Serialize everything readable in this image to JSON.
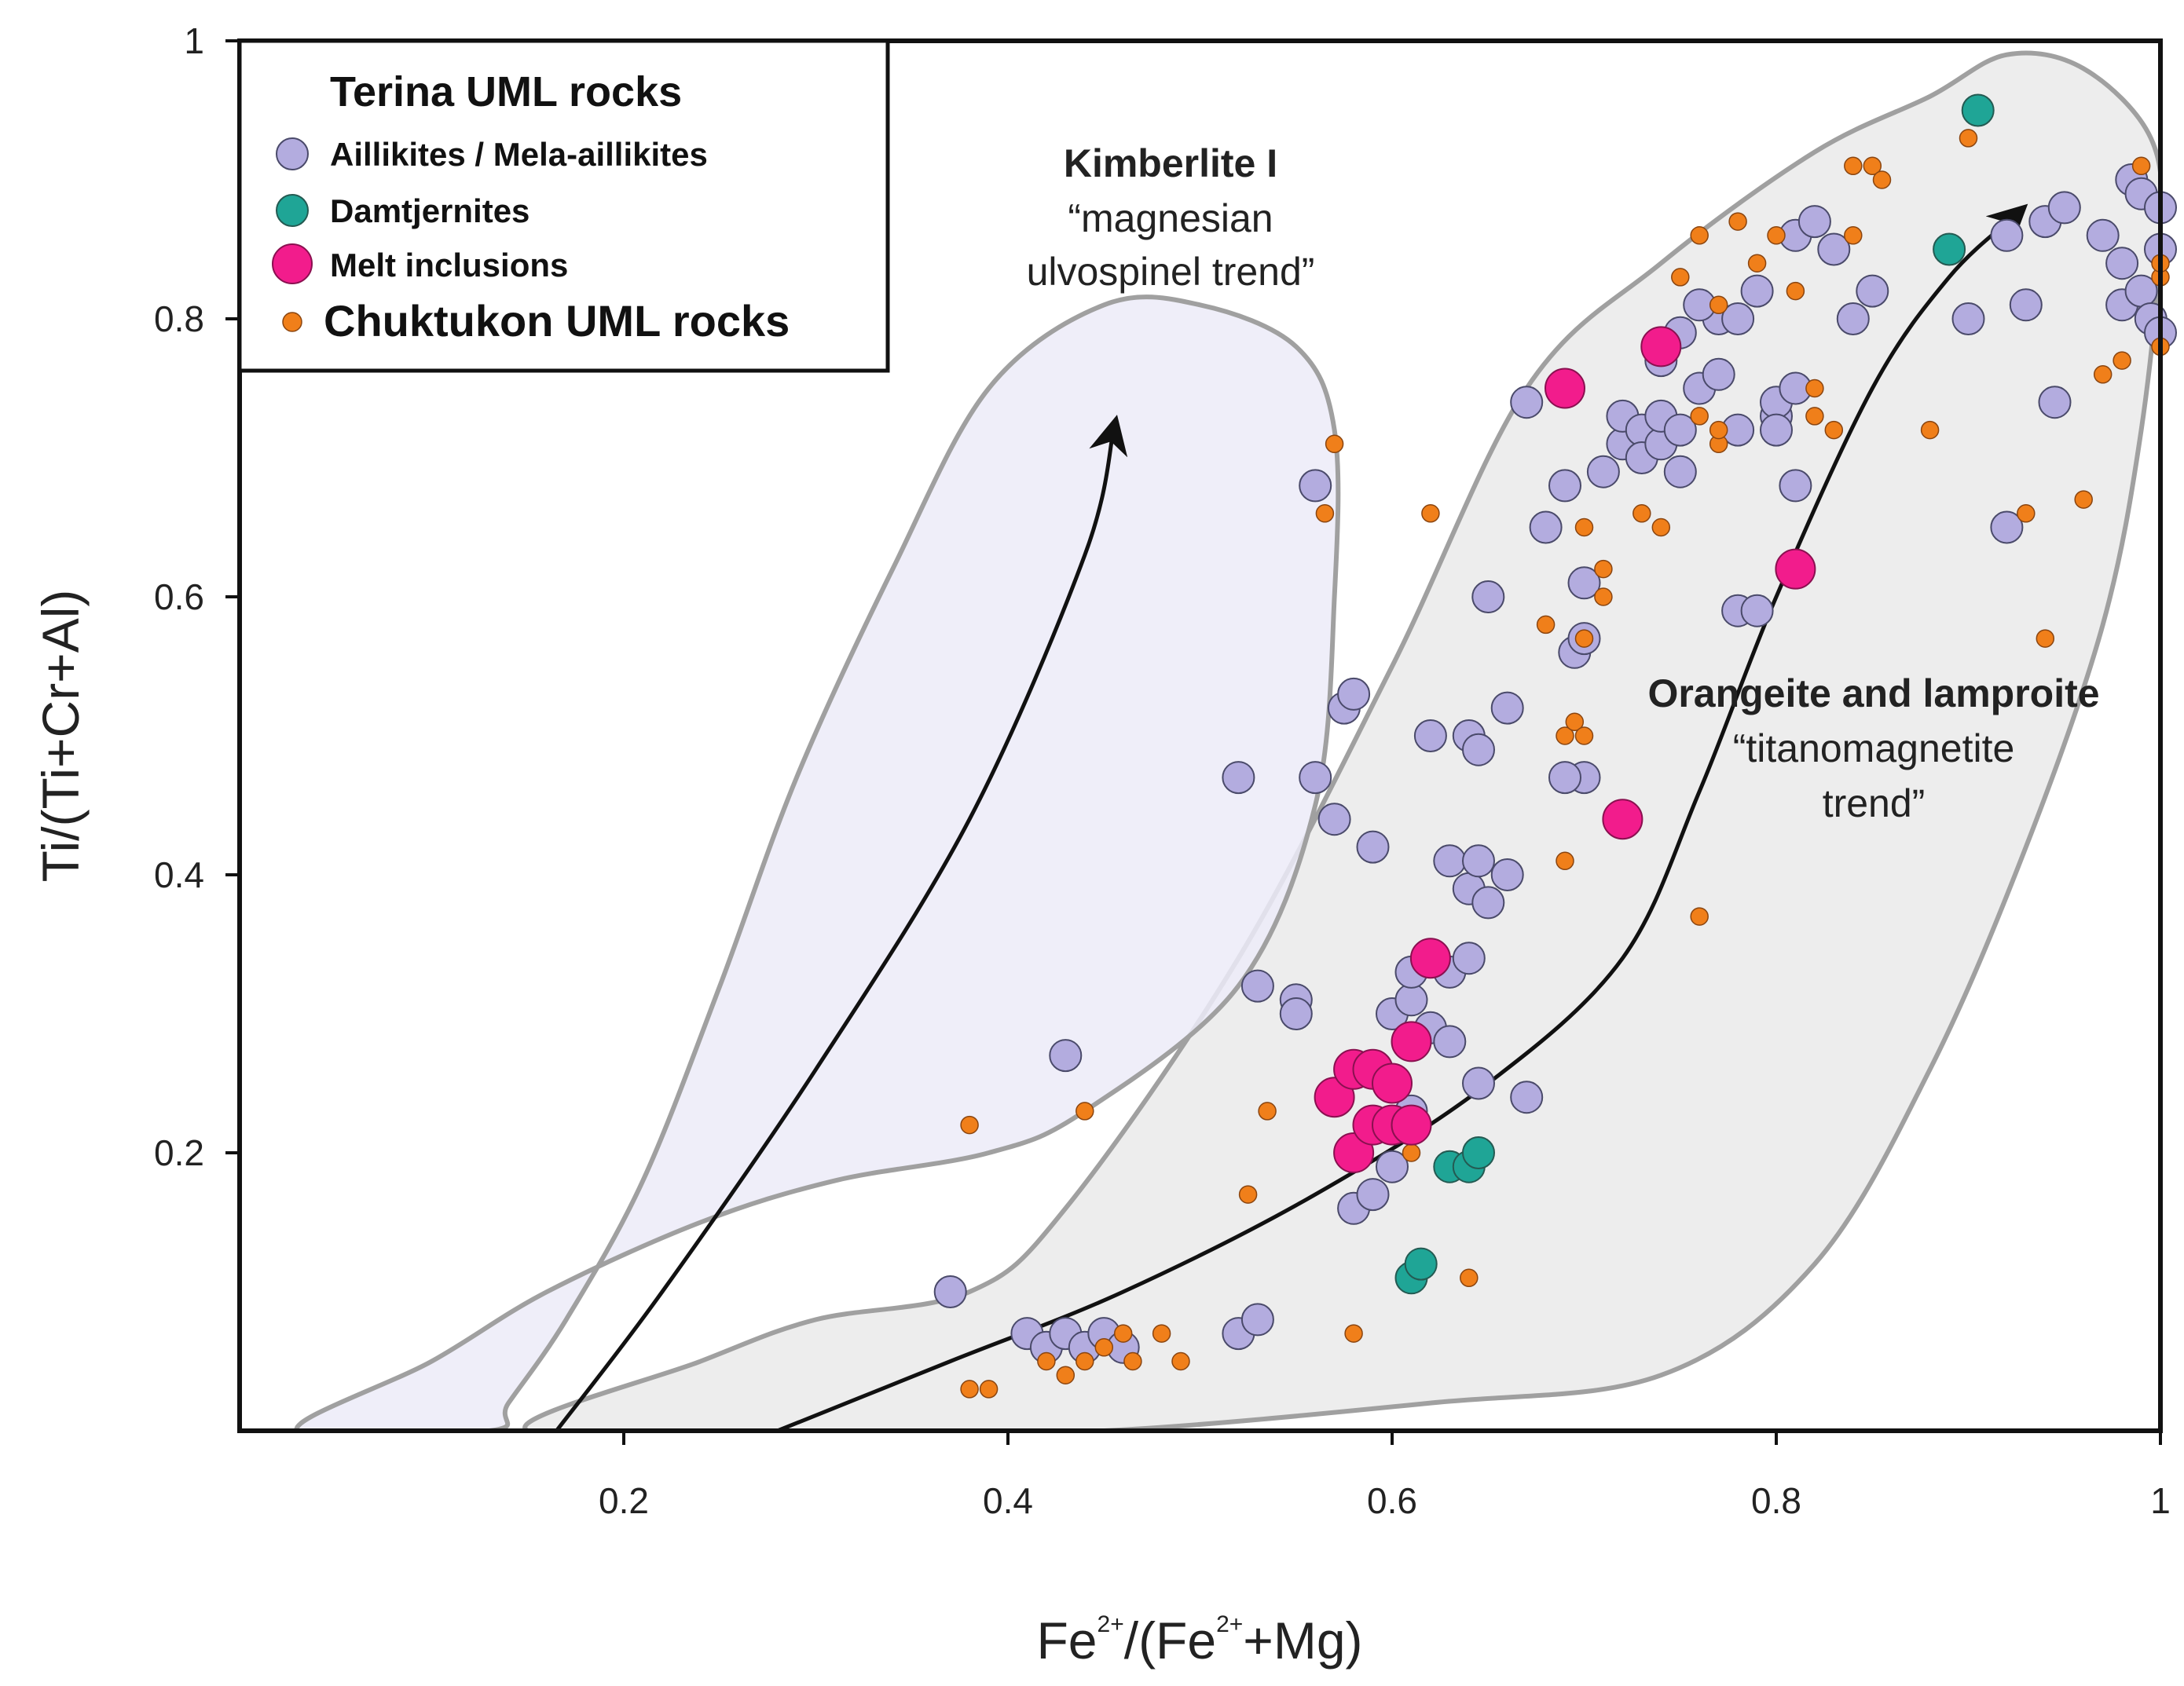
{
  "chart_data": {
    "type": "scatter",
    "title": "",
    "xlabel_parts": [
      "Fe",
      "2+",
      "/(Fe",
      "2+",
      "+Mg)"
    ],
    "ylabel": "Ti/(Ti+Cr+Al)",
    "xlim": [
      0,
      1
    ],
    "ylim": [
      0,
      1
    ],
    "x_ticks": [
      {
        "value": 0.2,
        "label": "0.2"
      },
      {
        "value": 0.4,
        "label": "0.4"
      },
      {
        "value": 0.6,
        "label": "0.6"
      },
      {
        "value": 0.8,
        "label": "0.8"
      },
      {
        "value": 1.0,
        "label": "1"
      }
    ],
    "y_ticks": [
      {
        "value": 0.2,
        "label": "0.2"
      },
      {
        "value": 0.4,
        "label": "0.4"
      },
      {
        "value": 0.6,
        "label": "0.6"
      },
      {
        "value": 0.8,
        "label": "0.8"
      },
      {
        "value": 1.0,
        "label": "1"
      }
    ],
    "legend": {
      "title": "Terina UML rocks",
      "placement": "top-left",
      "entries": [
        {
          "series": "aillikites",
          "label": "Aillikites / Mela-aillikites"
        },
        {
          "series": "damtjernites",
          "label": "Damtjernites"
        },
        {
          "series": "melt_inclusions",
          "label": "Melt inclusions"
        },
        {
          "series": "chuktukon",
          "label": "Chuktukon UML rocks"
        }
      ]
    },
    "fields": [
      {
        "name": "kimberlite-field",
        "label": "Kimberlite I",
        "sublabel": [
          "“magnesian",
          "ulvospinel trend”"
        ],
        "fill": "#ecebf8",
        "outline": [
          [
            0.03,
            0
          ],
          [
            0.1,
            0.05
          ],
          [
            0.16,
            0.1
          ],
          [
            0.24,
            0.15
          ],
          [
            0.31,
            0.18
          ],
          [
            0.39,
            0.2
          ],
          [
            0.44,
            0.23
          ],
          [
            0.52,
            0.32
          ],
          [
            0.56,
            0.45
          ],
          [
            0.57,
            0.6
          ],
          [
            0.57,
            0.72
          ],
          [
            0.55,
            0.78
          ],
          [
            0.5,
            0.81
          ],
          [
            0.45,
            0.81
          ],
          [
            0.39,
            0.75
          ],
          [
            0.34,
            0.62
          ],
          [
            0.29,
            0.47
          ],
          [
            0.25,
            0.32
          ],
          [
            0.21,
            0.18
          ],
          [
            0.17,
            0.08
          ],
          [
            0.14,
            0.02
          ],
          [
            0.13,
            0
          ]
        ]
      },
      {
        "name": "orangeite-lamproite-field",
        "label": "Orangeite and lamproite",
        "sublabel": [
          "“titanomagnetite",
          "trend”"
        ],
        "fill": "#ededed",
        "outline": [
          [
            0.15,
            0
          ],
          [
            0.24,
            0.05
          ],
          [
            0.3,
            0.08
          ],
          [
            0.38,
            0.1
          ],
          [
            0.43,
            0.16
          ],
          [
            0.52,
            0.34
          ],
          [
            0.6,
            0.55
          ],
          [
            0.67,
            0.75
          ],
          [
            0.74,
            0.84
          ],
          [
            0.82,
            0.92
          ],
          [
            0.88,
            0.96
          ],
          [
            0.92,
            0.99
          ],
          [
            0.96,
            0.98
          ],
          [
            0.995,
            0.93
          ],
          [
            1.0,
            0.86
          ],
          [
            0.99,
            0.72
          ],
          [
            0.97,
            0.58
          ],
          [
            0.93,
            0.42
          ],
          [
            0.88,
            0.26
          ],
          [
            0.82,
            0.12
          ],
          [
            0.74,
            0.04
          ],
          [
            0.62,
            0.02
          ],
          [
            0.45,
            0
          ],
          [
            0.32,
            0
          ]
        ]
      }
    ],
    "trend_arrows": [
      {
        "name": "kimberlite-trend-arrow",
        "points": [
          [
            0.165,
            0
          ],
          [
            0.22,
            0.1
          ],
          [
            0.3,
            0.26
          ],
          [
            0.38,
            0.44
          ],
          [
            0.44,
            0.63
          ],
          [
            0.455,
            0.72
          ]
        ]
      },
      {
        "name": "orangeite-trend-arrow",
        "points": [
          [
            0.28,
            0
          ],
          [
            0.37,
            0.05
          ],
          [
            0.46,
            0.1
          ],
          [
            0.56,
            0.17
          ],
          [
            0.65,
            0.25
          ],
          [
            0.72,
            0.34
          ],
          [
            0.76,
            0.46
          ],
          [
            0.8,
            0.6
          ],
          [
            0.85,
            0.75
          ],
          [
            0.89,
            0.83
          ],
          [
            0.925,
            0.875
          ]
        ]
      }
    ],
    "series": [
      {
        "name": "Aillikites / Mela-aillikites",
        "key": "aillikites",
        "color": "#b3acdf",
        "points": [
          [
            0.37,
            0.1
          ],
          [
            0.41,
            0.07
          ],
          [
            0.42,
            0.06
          ],
          [
            0.43,
            0.07
          ],
          [
            0.44,
            0.06
          ],
          [
            0.45,
            0.07
          ],
          [
            0.46,
            0.06
          ],
          [
            0.43,
            0.27
          ],
          [
            0.52,
            0.07
          ],
          [
            0.53,
            0.08
          ],
          [
            0.52,
            0.47
          ],
          [
            0.53,
            0.32
          ],
          [
            0.55,
            0.31
          ],
          [
            0.55,
            0.3
          ],
          [
            0.56,
            0.47
          ],
          [
            0.57,
            0.44
          ],
          [
            0.575,
            0.52
          ],
          [
            0.58,
            0.53
          ],
          [
            0.56,
            0.68
          ],
          [
            0.59,
            0.42
          ],
          [
            0.6,
            0.3
          ],
          [
            0.61,
            0.31
          ],
          [
            0.61,
            0.33
          ],
          [
            0.62,
            0.29
          ],
          [
            0.63,
            0.33
          ],
          [
            0.63,
            0.28
          ],
          [
            0.6,
            0.25
          ],
          [
            0.61,
            0.23
          ],
          [
            0.59,
            0.22
          ],
          [
            0.6,
            0.19
          ],
          [
            0.58,
            0.16
          ],
          [
            0.59,
            0.17
          ],
          [
            0.63,
            0.41
          ],
          [
            0.64,
            0.39
          ],
          [
            0.645,
            0.41
          ],
          [
            0.65,
            0.38
          ],
          [
            0.66,
            0.4
          ],
          [
            0.64,
            0.34
          ],
          [
            0.645,
            0.25
          ],
          [
            0.62,
            0.5
          ],
          [
            0.64,
            0.5
          ],
          [
            0.645,
            0.49
          ],
          [
            0.65,
            0.6
          ],
          [
            0.66,
            0.52
          ],
          [
            0.67,
            0.74
          ],
          [
            0.68,
            0.65
          ],
          [
            0.69,
            0.68
          ],
          [
            0.695,
            0.56
          ],
          [
            0.7,
            0.57
          ],
          [
            0.7,
            0.61
          ],
          [
            0.7,
            0.47
          ],
          [
            0.69,
            0.47
          ],
          [
            0.71,
            0.69
          ],
          [
            0.72,
            0.71
          ],
          [
            0.72,
            0.73
          ],
          [
            0.73,
            0.72
          ],
          [
            0.73,
            0.7
          ],
          [
            0.74,
            0.71
          ],
          [
            0.74,
            0.73
          ],
          [
            0.75,
            0.69
          ],
          [
            0.75,
            0.72
          ],
          [
            0.74,
            0.77
          ],
          [
            0.75,
            0.79
          ],
          [
            0.76,
            0.75
          ],
          [
            0.77,
            0.76
          ],
          [
            0.77,
            0.8
          ],
          [
            0.76,
            0.81
          ],
          [
            0.78,
            0.72
          ],
          [
            0.78,
            0.8
          ],
          [
            0.79,
            0.82
          ],
          [
            0.8,
            0.73
          ],
          [
            0.8,
            0.74
          ],
          [
            0.81,
            0.75
          ],
          [
            0.8,
            0.72
          ],
          [
            0.81,
            0.68
          ],
          [
            0.78,
            0.59
          ],
          [
            0.79,
            0.59
          ],
          [
            0.81,
            0.86
          ],
          [
            0.82,
            0.87
          ],
          [
            0.83,
            0.85
          ],
          [
            0.84,
            0.8
          ],
          [
            0.85,
            0.82
          ],
          [
            0.9,
            0.8
          ],
          [
            0.92,
            0.86
          ],
          [
            0.94,
            0.87
          ],
          [
            0.95,
            0.88
          ],
          [
            0.97,
            0.86
          ],
          [
            0.98,
            0.84
          ],
          [
            0.985,
            0.9
          ],
          [
            0.99,
            0.89
          ],
          [
            1.0,
            0.85
          ],
          [
            1.0,
            0.88
          ],
          [
            0.98,
            0.81
          ],
          [
            0.99,
            0.82
          ],
          [
            0.995,
            0.8
          ],
          [
            1.0,
            0.79
          ],
          [
            0.93,
            0.81
          ],
          [
            0.945,
            0.74
          ],
          [
            0.92,
            0.65
          ],
          [
            0.67,
            0.24
          ]
        ]
      },
      {
        "name": "Damtjernites",
        "key": "damtjernites",
        "color": "#1fa596",
        "points": [
          [
            0.61,
            0.11
          ],
          [
            0.615,
            0.12
          ],
          [
            0.63,
            0.19
          ],
          [
            0.64,
            0.19
          ],
          [
            0.645,
            0.2
          ],
          [
            0.89,
            0.85
          ],
          [
            0.905,
            0.95
          ]
        ]
      },
      {
        "name": "Melt inclusions",
        "key": "melt_inclusions",
        "color": "#f21c8c",
        "points": [
          [
            0.57,
            0.24
          ],
          [
            0.58,
            0.2
          ],
          [
            0.58,
            0.26
          ],
          [
            0.59,
            0.26
          ],
          [
            0.59,
            0.22
          ],
          [
            0.6,
            0.22
          ],
          [
            0.6,
            0.25
          ],
          [
            0.61,
            0.22
          ],
          [
            0.61,
            0.28
          ],
          [
            0.62,
            0.34
          ],
          [
            0.69,
            0.75
          ],
          [
            0.72,
            0.44
          ],
          [
            0.74,
            0.78
          ],
          [
            0.81,
            0.62
          ]
        ]
      },
      {
        "name": "Chuktukon UML rocks",
        "key": "chuktukon",
        "color": "#f07f1a",
        "points": [
          [
            0.38,
            0.03
          ],
          [
            0.39,
            0.03
          ],
          [
            0.42,
            0.05
          ],
          [
            0.43,
            0.04
          ],
          [
            0.44,
            0.05
          ],
          [
            0.45,
            0.06
          ],
          [
            0.46,
            0.07
          ],
          [
            0.465,
            0.05
          ],
          [
            0.48,
            0.07
          ],
          [
            0.49,
            0.05
          ],
          [
            0.38,
            0.22
          ],
          [
            0.44,
            0.23
          ],
          [
            0.525,
            0.17
          ],
          [
            0.535,
            0.23
          ],
          [
            0.57,
            0.71
          ],
          [
            0.565,
            0.66
          ],
          [
            0.58,
            0.07
          ],
          [
            0.61,
            0.2
          ],
          [
            0.62,
            0.66
          ],
          [
            0.64,
            0.11
          ],
          [
            0.69,
            0.41
          ],
          [
            0.69,
            0.5
          ],
          [
            0.695,
            0.51
          ],
          [
            0.7,
            0.5
          ],
          [
            0.7,
            0.57
          ],
          [
            0.7,
            0.65
          ],
          [
            0.71,
            0.6
          ],
          [
            0.71,
            0.62
          ],
          [
            0.68,
            0.58
          ],
          [
            0.73,
            0.66
          ],
          [
            0.74,
            0.65
          ],
          [
            0.75,
            0.83
          ],
          [
            0.76,
            0.86
          ],
          [
            0.77,
            0.81
          ],
          [
            0.78,
            0.87
          ],
          [
            0.79,
            0.84
          ],
          [
            0.8,
            0.86
          ],
          [
            0.81,
            0.82
          ],
          [
            0.82,
            0.75
          ],
          [
            0.82,
            0.73
          ],
          [
            0.83,
            0.72
          ],
          [
            0.84,
            0.91
          ],
          [
            0.85,
            0.91
          ],
          [
            0.855,
            0.9
          ],
          [
            0.84,
            0.86
          ],
          [
            0.76,
            0.73
          ],
          [
            0.77,
            0.71
          ],
          [
            0.77,
            0.72
          ],
          [
            0.76,
            0.37
          ],
          [
            0.88,
            0.72
          ],
          [
            0.9,
            0.93
          ],
          [
            0.93,
            0.66
          ],
          [
            0.94,
            0.57
          ],
          [
            0.96,
            0.67
          ],
          [
            0.97,
            0.76
          ],
          [
            0.98,
            0.77
          ],
          [
            0.99,
            0.91
          ],
          [
            1.0,
            0.83
          ],
          [
            1.0,
            0.84
          ],
          [
            1.0,
            0.78
          ]
        ]
      }
    ]
  }
}
